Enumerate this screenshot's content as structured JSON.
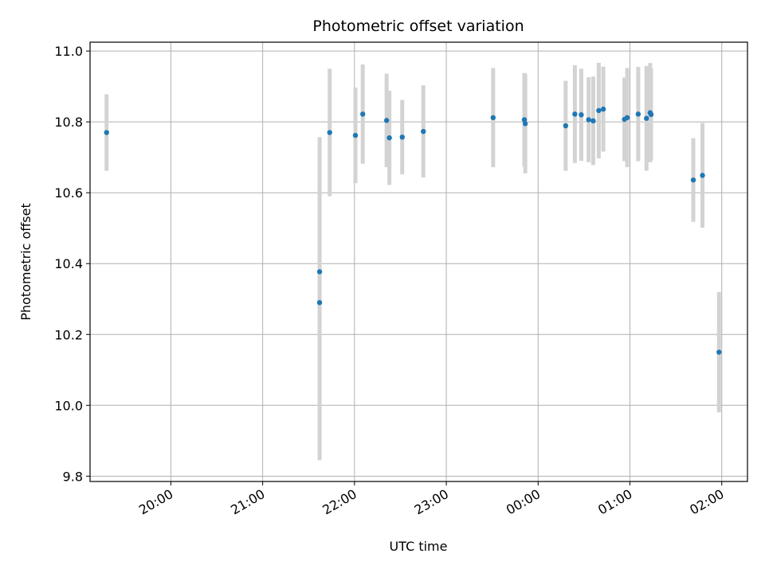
{
  "chart_data": {
    "type": "scatter",
    "title": "Photometric offset variation",
    "xlabel": "UTC time",
    "ylabel": "Photometric offset",
    "x_unit": "hours (UTC, ticks wrap after 24:00)",
    "xlim": [
      19.12,
      26.28
    ],
    "ylim": [
      9.785,
      11.025
    ],
    "x_ticks": [
      {
        "value": 20,
        "label": "20:00"
      },
      {
        "value": 21,
        "label": "21:00"
      },
      {
        "value": 22,
        "label": "22:00"
      },
      {
        "value": 23,
        "label": "23:00"
      },
      {
        "value": 24,
        "label": "00:00"
      },
      {
        "value": 25,
        "label": "01:00"
      },
      {
        "value": 26,
        "label": "02:00"
      }
    ],
    "y_ticks": [
      {
        "value": 9.8,
        "label": "9.8"
      },
      {
        "value": 10.0,
        "label": "10.0"
      },
      {
        "value": 10.2,
        "label": "10.2"
      },
      {
        "value": 10.4,
        "label": "10.4"
      },
      {
        "value": 10.6,
        "label": "10.6"
      },
      {
        "value": 10.8,
        "label": "10.8"
      },
      {
        "value": 11.0,
        "label": "11.0"
      }
    ],
    "grid": true,
    "point_color": "#1f77b4",
    "errorbar_color": "#d3d3d3",
    "points": [
      {
        "x": 19.3,
        "y": 10.77,
        "err": 0.108
      },
      {
        "x": 21.62,
        "y": 10.377,
        "err": 0.38
      },
      {
        "x": 21.62,
        "y": 10.29,
        "err": 0.445
      },
      {
        "x": 21.73,
        "y": 10.77,
        "err": 0.18
      },
      {
        "x": 22.01,
        "y": 10.762,
        "err": 0.135
      },
      {
        "x": 22.09,
        "y": 10.822,
        "err": 0.14
      },
      {
        "x": 22.35,
        "y": 10.804,
        "err": 0.132
      },
      {
        "x": 22.38,
        "y": 10.755,
        "err": 0.133
      },
      {
        "x": 22.52,
        "y": 10.757,
        "err": 0.105
      },
      {
        "x": 22.75,
        "y": 10.773,
        "err": 0.13
      },
      {
        "x": 23.51,
        "y": 10.812,
        "err": 0.14
      },
      {
        "x": 23.85,
        "y": 10.806,
        "err": 0.132
      },
      {
        "x": 23.86,
        "y": 10.795,
        "err": 0.14
      },
      {
        "x": 24.3,
        "y": 10.789,
        "err": 0.127
      },
      {
        "x": 24.4,
        "y": 10.822,
        "err": 0.138
      },
      {
        "x": 24.47,
        "y": 10.82,
        "err": 0.13
      },
      {
        "x": 24.55,
        "y": 10.806,
        "err": 0.12
      },
      {
        "x": 24.6,
        "y": 10.803,
        "err": 0.125
      },
      {
        "x": 24.66,
        "y": 10.832,
        "err": 0.135
      },
      {
        "x": 24.71,
        "y": 10.836,
        "err": 0.12
      },
      {
        "x": 24.94,
        "y": 10.807,
        "err": 0.118
      },
      {
        "x": 24.97,
        "y": 10.812,
        "err": 0.14
      },
      {
        "x": 25.09,
        "y": 10.822,
        "err": 0.133
      },
      {
        "x": 25.18,
        "y": 10.81,
        "err": 0.148
      },
      {
        "x": 25.22,
        "y": 10.826,
        "err": 0.14
      },
      {
        "x": 25.23,
        "y": 10.821,
        "err": 0.13
      },
      {
        "x": 25.69,
        "y": 10.636,
        "err": 0.118
      },
      {
        "x": 25.79,
        "y": 10.649,
        "err": 0.148
      },
      {
        "x": 25.97,
        "y": 10.15,
        "err": 0.17
      }
    ]
  }
}
